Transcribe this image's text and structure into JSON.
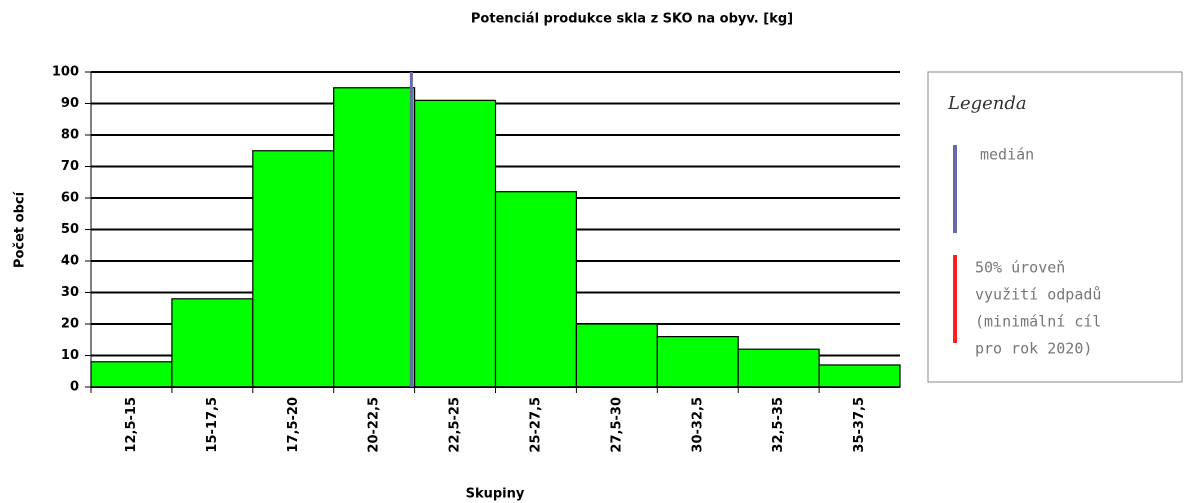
{
  "chart_data": {
    "type": "bar",
    "title": "Potenciál produkce skla z SKO na obyv. [kg]",
    "x_label": "Skupiny",
    "y_label": "Počet obcí",
    "categories": [
      "12,5-15",
      "15-17,5",
      "17,5-20",
      "20-22,5",
      "22,5-25",
      "25-27,5",
      "27,5-30",
      "30-32,5",
      "32,5-35",
      "35-37,5"
    ],
    "values": [
      8,
      28,
      75,
      95,
      91,
      62,
      20,
      16,
      12,
      7
    ],
    "color": "#00ff00",
    "xlim": [
      12.5,
      37.5
    ],
    "median": 22.4,
    "median_color": "#6a6aa8",
    "ylim": [
      0,
      100
    ],
    "yticks": [
      0,
      10,
      20,
      30,
      40,
      50,
      60,
      70,
      80,
      90,
      100
    ],
    "grid": true,
    "legend": {
      "title": "Legenda",
      "items": [
        {
          "lines": [
            "medián"
          ],
          "color": "#6a6aa8"
        },
        {
          "lines": [
            "50% úroveň",
            "využití odpadů",
            "(minimální cíl",
            "pro rok 2020)"
          ],
          "color": "#ff2020"
        }
      ]
    }
  }
}
